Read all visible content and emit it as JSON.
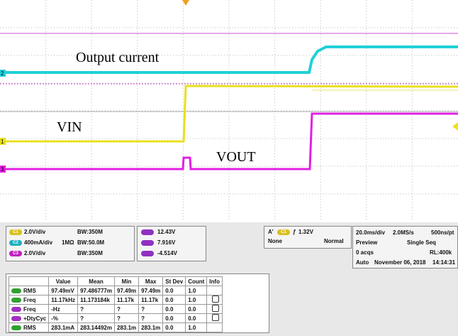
{
  "annotations": [
    "Output current",
    "VIN",
    "VOUT"
  ],
  "trace_markers": [
    "2",
    "1",
    "3"
  ],
  "channels": [
    {
      "badge": "C1",
      "scale": "2.0V/div",
      "bandwidth": "BW:350M"
    },
    {
      "badge": "C2",
      "scale": "400mA/div",
      "impedance": "1MΩ",
      "bandwidth": "BW:50.0M"
    },
    {
      "badge": "C3",
      "scale": "2.0V/div",
      "bandwidth": "BW:350M"
    }
  ],
  "levels": [
    "12.43V",
    "7.916V",
    "-4.514V"
  ],
  "trigger": {
    "mode": "A'",
    "source": "C1",
    "level": "1.32V",
    "coupling": "None",
    "type": "Normal"
  },
  "acquisition": {
    "timebase": "20.0ms/div",
    "rate": "2.0MS/s",
    "resolution": "500ns/pt",
    "view": "Preview",
    "sequence": "Single Seq",
    "acqs": "0 acqs",
    "record": "RL:400k",
    "auto": "Auto",
    "date": "November 06, 2018",
    "time": "14:14:31"
  },
  "measurements": {
    "header": [
      "Value",
      "Mean",
      "Min",
      "Max",
      "St Dev",
      "Count",
      "Info"
    ],
    "rows": [
      [
        "RMS",
        "97.49mV",
        "97.486777m",
        "97.49m",
        "97.49m",
        "0.0",
        "1.0"
      ],
      [
        "Freq",
        "11.17kHz",
        "11.173184k",
        "11.17k",
        "11.17k",
        "0.0",
        "1.0"
      ],
      [
        "Freq",
        "-Hz",
        "?",
        "?",
        "?",
        "0.0",
        "0.0"
      ],
      [
        "+DtyCyc",
        "-%",
        "?",
        "?",
        "?",
        "0.0",
        "0.0"
      ],
      [
        "RMS",
        "283.1mA",
        "283.14492m",
        "283.1m",
        "283.1m",
        "0.0",
        "1.0"
      ]
    ]
  }
}
